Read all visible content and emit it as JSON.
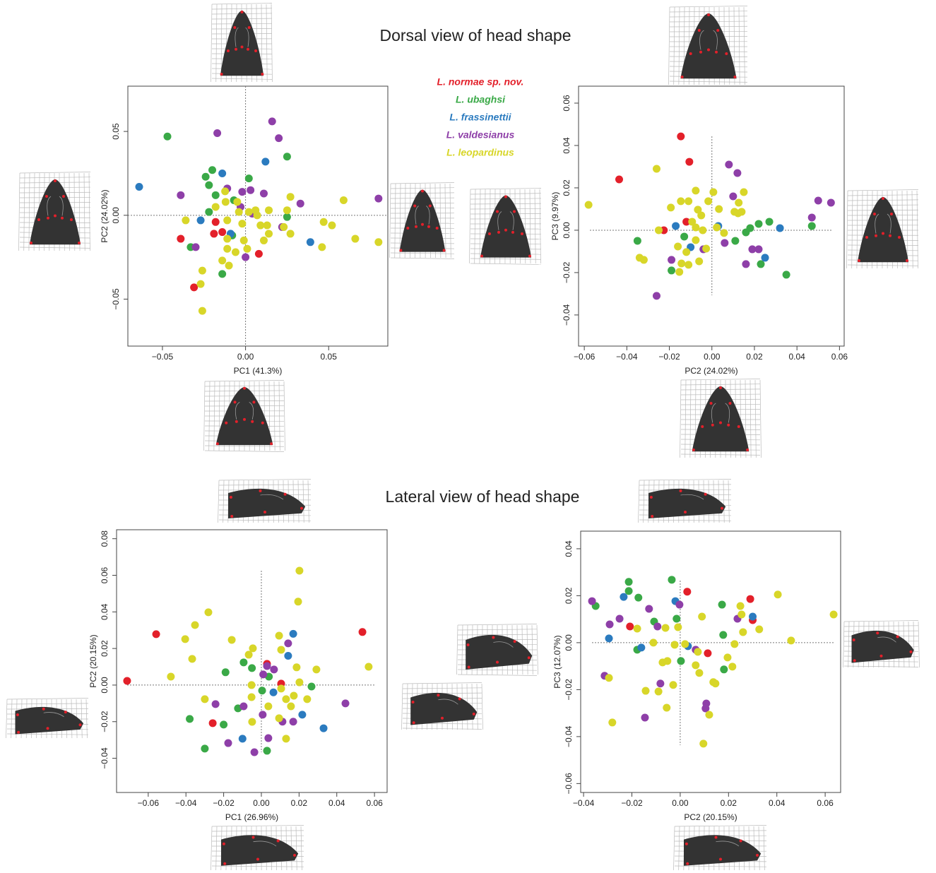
{
  "headings": [
    "Dorsal view of head shape",
    "Lateral view of head shape"
  ],
  "chart_data": [
    {
      "type": "scatter",
      "xlabel": "PC1 (41.3%)",
      "ylabel": "PC2 (24.02%)",
      "legend": true,
      "zero_lines": true,
      "xlim": [
        -0.0708,
        0.0856
      ],
      "ylim": [
        -0.078,
        0.077
      ],
      "xticks": [
        {
          "value": -0.05,
          "label": "−0.05"
        },
        {
          "value": 0,
          "label": "0.00"
        },
        0.05
      ],
      "yticks": [
        {
          "value": -0.05,
          "label": "−0.05"
        },
        {
          "value": 0,
          "label": "0.00"
        },
        0.05
      ],
      "series": [
        {
          "name": "L. normae sp. nov.",
          "color": "#e3202a",
          "x": [
            -0.018,
            -0.019,
            -0.014,
            -0.039,
            -0.031,
            0.008
          ],
          "values": [
            -0.004,
            -0.011,
            -0.01,
            -0.014,
            -0.043,
            -0.023
          ]
        },
        {
          "name": "L. ubaghsi",
          "color": "#3aa947",
          "x": [
            -0.047,
            -0.024,
            -0.02,
            -0.022,
            -0.018,
            -0.022,
            -0.007,
            0.002,
            0.025,
            0.025,
            -0.033,
            -0.014,
            -0.008
          ],
          "values": [
            0.047,
            0.023,
            0.027,
            0.018,
            0.012,
            0.002,
            0.009,
            0.022,
            0.035,
            -0.001,
            -0.019,
            -0.035,
            -0.012
          ]
        },
        {
          "name": "L. frassinettii",
          "color": "#2b7bbf",
          "x": [
            -0.064,
            -0.014,
            0.012,
            0.039,
            -0.027,
            -0.009
          ],
          "values": [
            0.017,
            0.025,
            0.032,
            -0.016,
            -0.003,
            -0.011
          ]
        },
        {
          "name": "L. valdesianus",
          "color": "#8e3fa8",
          "x": [
            0.016,
            -0.017,
            0.02,
            -0.039,
            -0.011,
            -0.002,
            0.003,
            0.011,
            0.033,
            0.08,
            -0.003,
            0.004,
            -0.03,
            0.0,
            0.022
          ],
          "values": [
            0.056,
            0.049,
            0.046,
            0.012,
            0.016,
            0.014,
            0.015,
            0.013,
            0.007,
            0.01,
            0.005,
            0.001,
            -0.019,
            -0.025,
            -0.007
          ]
        },
        {
          "name": "L. leopardinus",
          "color": "#d8d629",
          "x": [
            -0.0123,
            -0.005,
            -0.012,
            -0.004,
            -0.018,
            -0.011,
            -0.002,
            0.002,
            0.006,
            0.007,
            0.009,
            0.013,
            0.014,
            0.023,
            0.027,
            0.011,
            0.001,
            -0.011,
            -0.014,
            -0.01,
            -0.026,
            -0.027,
            -0.026,
            -0.036,
            -0.011,
            -0.006,
            0.014,
            0.027,
            0.047,
            0.052,
            0.059,
            0.066,
            0.08,
            0.046,
            -0.001,
            0.025
          ],
          "values": [
            0.0143,
            0.008,
            0.008,
            0.002,
            0.005,
            -0.003,
            -0.005,
            0.002,
            0.003,
            0.0,
            -0.006,
            -0.006,
            -0.011,
            -0.007,
            -0.011,
            -0.015,
            -0.02,
            -0.02,
            -0.027,
            -0.03,
            -0.033,
            -0.041,
            -0.057,
            -0.003,
            -0.014,
            -0.022,
            0.003,
            0.011,
            -0.004,
            -0.006,
            0.009,
            -0.014,
            -0.016,
            -0.019,
            -0.015,
            0.003
          ]
        }
      ]
    },
    {
      "type": "scatter",
      "xlabel": "PC2 (24.02%)",
      "ylabel": "PC3 (9.97%)",
      "zero_lines": true,
      "xlim": [
        -0.0627,
        0.0622
      ],
      "ylim": [
        -0.0547,
        0.068
      ],
      "xticks": [
        {
          "value": -0.06,
          "label": "−0.06"
        },
        {
          "value": -0.04,
          "label": "−0.04"
        },
        {
          "value": -0.02,
          "label": "−0.02"
        },
        {
          "value": 0,
          "label": "0.00"
        },
        0.02,
        0.04,
        0.06
      ],
      "yticks": [
        {
          "value": -0.04,
          "label": "−0.04"
        },
        {
          "value": -0.02,
          "label": "−0.02"
        },
        {
          "value": 0,
          "label": "0.00"
        },
        0.02,
        0.04,
        0.06
      ],
      "series": [
        {
          "name": "L. normae sp. nov.",
          "color": "#e3202a",
          "x": [
            -0.0146,
            -0.0106,
            -0.0436,
            -0.0226,
            -0.012
          ],
          "values": [
            0.0443,
            0.0323,
            0.024,
            0.0,
            0.004
          ]
        },
        {
          "name": "L. ubaghsi",
          "color": "#3aa947",
          "x": [
            -0.035,
            -0.019,
            -0.013,
            0.035,
            0.027,
            0.022,
            0.018,
            0.023,
            0.047,
            0.011,
            0.016
          ],
          "values": [
            -0.005,
            -0.019,
            -0.003,
            -0.021,
            0.004,
            0.003,
            0.001,
            -0.016,
            0.002,
            -0.005,
            -0.001
          ]
        },
        {
          "name": "L. frassinettii",
          "color": "#2b7bbf",
          "x": [
            -0.017,
            -0.01,
            0.032,
            0.025,
            0.003
          ],
          "values": [
            0.002,
            -0.008,
            0.001,
            -0.013,
            0.002
          ]
        },
        {
          "name": "L. valdesianus",
          "color": "#8e3fa8",
          "x": [
            0.008,
            0.012,
            0.05,
            0.056,
            0.047,
            0.01,
            -0.026,
            -0.019,
            0.016,
            0.006,
            0.019,
            0.022,
            -0.004
          ],
          "values": [
            0.031,
            0.027,
            0.014,
            0.013,
            0.006,
            0.016,
            -0.031,
            -0.014,
            -0.016,
            -0.006,
            -0.009,
            -0.009,
            -0.009
          ]
        },
        {
          "name": "L. leopardinus",
          "color": "#d8d629",
          "x": [
            -0.058,
            -0.026,
            -0.032,
            -0.034,
            -0.025,
            -0.0193,
            -0.0146,
            -0.011,
            -0.0066,
            0.0007,
            -0.0017,
            0.0033,
            -0.005,
            -0.0076,
            -0.0043,
            0.0023,
            0.0057,
            -0.0076,
            -0.016,
            -0.012,
            -0.011,
            -0.0153,
            -0.0143,
            -0.006,
            0.0106,
            0.014,
            0.015,
            0.0126,
            0.0123,
            -0.0027,
            -0.0093,
            -0.0076
          ],
          "values": [
            0.012,
            0.029,
            -0.014,
            -0.013,
            0.0,
            0.0107,
            0.0137,
            0.0137,
            0.0097,
            0.018,
            0.0137,
            0.01,
            0.007,
            0.0013,
            0.0,
            0.0013,
            -0.0013,
            -0.0047,
            -0.0077,
            -0.0103,
            -0.0163,
            -0.0197,
            -0.0157,
            -0.0147,
            0.0087,
            0.0087,
            0.018,
            0.013,
            0.008,
            -0.0087,
            0.004,
            0.0187
          ]
        }
      ]
    },
    {
      "type": "scatter",
      "xlabel": "PC1 (26.96%)",
      "ylabel": "PC2 (20.15%)",
      "zero_lines": true,
      "xlim": [
        -0.0768,
        0.0667
      ],
      "ylim": [
        -0.0587,
        0.0849
      ],
      "xticks": [
        {
          "value": -0.06,
          "label": "−0.06"
        },
        {
          "value": -0.04,
          "label": "−0.04"
        },
        {
          "value": -0.02,
          "label": "−0.02"
        },
        {
          "value": 0,
          "label": "0.00"
        },
        0.02,
        0.04,
        0.06
      ],
      "yticks": [
        {
          "value": -0.04,
          "label": "−0.04"
        },
        {
          "value": -0.02,
          "label": "−0.02"
        },
        {
          "value": 0,
          "label": "0.00"
        },
        0.02,
        0.04,
        0.06,
        0.08
      ],
      "series": [
        {
          "name": "L. normae sp. nov.",
          "color": "#e3202a",
          "x": [
            -0.0712,
            -0.0558,
            0.0536,
            -0.0258,
            0.0105,
            0.003
          ],
          "values": [
            0.0023,
            0.0278,
            0.029,
            -0.0208,
            0.0008,
            0.0116
          ]
        },
        {
          "name": "L. ubaghsi",
          "color": "#3aa947",
          "x": [
            -0.038,
            -0.02,
            -0.03,
            -0.0094,
            -0.019,
            -0.005,
            0.004,
            0.0266,
            0.003,
            -0.0124,
            0.0004
          ],
          "values": [
            -0.0185,
            -0.0216,
            -0.0347,
            0.0124,
            0.007,
            0.0093,
            0.0046,
            -0.0008,
            -0.0359,
            -0.0127,
            -0.003
          ]
        },
        {
          "name": "L. frassinettii",
          "color": "#2b7bbf",
          "x": [
            0.0169,
            0.0142,
            0.0217,
            0.033,
            -0.01,
            0.0064
          ],
          "values": [
            0.028,
            0.016,
            -0.0162,
            -0.0236,
            -0.0293,
            -0.004
          ]
        },
        {
          "name": "L. valdesianus",
          "color": "#8e3fa8",
          "x": [
            0.0142,
            0.003,
            0.001,
            0.0446,
            -0.0176,
            -0.0037,
            0.0037,
            0.0112,
            0.0169,
            0.0007,
            -0.0094,
            -0.0243,
            0.0067
          ],
          "values": [
            0.0228,
            0.0104,
            0.0058,
            -0.01,
            -0.0317,
            -0.0367,
            -0.029,
            -0.02,
            -0.02,
            -0.0162,
            -0.0116,
            -0.0104,
            0.0085
          ]
        },
        {
          "name": "L. leopardinus",
          "color": "#d8d629",
          "x": [
            0.0202,
            0.0195,
            -0.0281,
            -0.0352,
            -0.0404,
            -0.0367,
            -0.048,
            -0.0157,
            -0.0067,
            -0.0045,
            0.0094,
            0.0105,
            0.0187,
            0.0292,
            0.0202,
            0.0131,
            0.0157,
            0.0131,
            0.0094,
            0.0037,
            -0.0049,
            -0.0052,
            -0.03,
            -0.0052,
            0.0569,
            0.0243,
            0.0105,
            0.0172
          ],
          "values": [
            0.0625,
            0.0456,
            0.0398,
            0.0328,
            0.0251,
            0.0143,
            0.0046,
            0.0247,
            0.0166,
            0.0201,
            0.027,
            0.0193,
            0.0097,
            0.0085,
            0.0015,
            -0.0077,
            -0.0116,
            -0.0293,
            -0.0181,
            -0.0116,
            -0.0201,
            -0.0066,
            -0.0077,
            0,
            0.01,
            -0.0077,
            -0.0019,
            -0.0058
          ]
        }
      ]
    },
    {
      "type": "scatter",
      "xlabel": "PC2 (20.15%)",
      "ylabel": "PC3 (12.07%)",
      "zero_lines": true,
      "xlim": [
        -0.0412,
        0.0664
      ],
      "ylim": [
        -0.0638,
        0.0475
      ],
      "xticks": [
        {
          "value": -0.04,
          "label": "−0.04"
        },
        {
          "value": -0.02,
          "label": "−0.02"
        },
        {
          "value": 0,
          "label": "0.00"
        },
        0.02,
        0.04,
        0.06
      ],
      "yticks": [
        {
          "value": -0.06,
          "label": "−0.06"
        },
        {
          "value": -0.04,
          "label": "−0.04"
        },
        {
          "value": -0.02,
          "label": "−0.02"
        },
        {
          "value": 0,
          "label": "0.00"
        },
        0.02,
        0.04
      ],
      "series": [
        {
          "name": "L. normae sp. nov.",
          "color": "#e3202a",
          "x": [
            0.0029,
            0.029,
            0.03,
            -0.0208,
            0.0114
          ],
          "values": [
            0.0217,
            0.0186,
            0.0096,
            0.0069,
            -0.0045
          ]
        },
        {
          "name": "L. ubaghsi",
          "color": "#3aa947",
          "x": [
            -0.0213,
            -0.0213,
            -0.0173,
            -0.035,
            -0.0035,
            -0.0108,
            -0.0015,
            0.0173,
            0.0178,
            0.0181,
            0.0003,
            -0.0178
          ],
          "values": [
            0.0259,
            0.022,
            0.0192,
            0.0156,
            0.0268,
            0.009,
            0.0102,
            0.0162,
            0.0033,
            -0.0114,
            -0.0078,
            -0.003
          ]
        },
        {
          "name": "L. frassinettii",
          "color": "#2b7bbf",
          "x": [
            -0.0234,
            -0.0295,
            -0.0161,
            0.0032,
            0.03,
            -0.002
          ],
          "values": [
            0.0195,
            0.0018,
            -0.0021,
            -0.0015,
            0.0111,
            0.0177
          ]
        },
        {
          "name": "L. valdesianus",
          "color": "#8e3fa8",
          "x": [
            -0.0365,
            -0.0292,
            -0.0251,
            -0.0129,
            -0.0094,
            0.0237,
            -0.0313,
            -0.0146,
            -0.0082,
            0.0108,
            0.0105,
            0.0064,
            -0.0003
          ],
          "values": [
            0.0177,
            0.0078,
            0.0102,
            0.0144,
            0.0069,
            0.0102,
            -0.0141,
            -0.0319,
            -0.0174,
            -0.0259,
            -0.028,
            -0.003,
            0.0162
          ]
        },
        {
          "name": "L. leopardinus",
          "color": "#d8d629",
          "x": [
            0.0404,
            0.0635,
            0.0459,
            0.0249,
            0.0254,
            0.0327,
            0.026,
            0.0225,
            0.0196,
            0.0216,
            0.009,
            -0.0009,
            -0.0061,
            -0.0111,
            -0.0023,
            0.002,
            0.0073,
            0.0064,
            0.0079,
            0.0137,
            0.0146,
            0.012,
            0.0096,
            -0.0073,
            -0.0053,
            -0.0143,
            -0.009,
            -0.0056,
            -0.0029,
            -0.0281,
            -0.0295,
            -0.0178
          ],
          "values": [
            0.0205,
            0.012,
            0.0009,
            0.0156,
            0.012,
            0.0057,
            0.0045,
            -0.0006,
            -0.0063,
            -0.0102,
            0.0111,
            0.0066,
            0.0063,
            0,
            -0.0009,
            -0.0006,
            -0.0039,
            -0.0096,
            -0.0129,
            -0.0168,
            -0.0174,
            -0.0307,
            -0.043,
            -0.0084,
            -0.0078,
            -0.0205,
            -0.0208,
            -0.0277,
            -0.018,
            -0.034,
            -0.015,
            0.006
          ]
        }
      ]
    }
  ]
}
